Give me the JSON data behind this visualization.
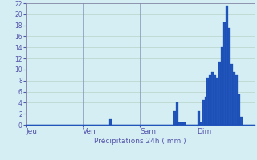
{
  "title": "Précipitations 24h ( mm )",
  "bar_color": "#2255bb",
  "bar_edge_color": "#1144aa",
  "background_color": "#d4eef4",
  "grid_color": "#b0ccbb",
  "tick_label_color": "#5555aa",
  "ylim": [
    0,
    22
  ],
  "yticks": [
    0,
    2,
    4,
    6,
    8,
    10,
    12,
    14,
    16,
    18,
    20,
    22
  ],
  "day_labels": [
    "Jeu",
    "Ven",
    "Sam",
    "Dim"
  ],
  "day_positions": [
    0,
    24,
    48,
    72
  ],
  "num_bars": 96,
  "bar_values": [
    0,
    0,
    0,
    0,
    0,
    0,
    0,
    0,
    0,
    0,
    0,
    0,
    0,
    0,
    0,
    0,
    0,
    0,
    0,
    0,
    0,
    0,
    0,
    0,
    0,
    0,
    0,
    0,
    0,
    0,
    0,
    0,
    0,
    0,
    0,
    1,
    0,
    0,
    0,
    0,
    0,
    0,
    0,
    0,
    0,
    0,
    0,
    0,
    0,
    0,
    0,
    0,
    0,
    0,
    0,
    0,
    0,
    0,
    0,
    0,
    0,
    0,
    2.5,
    4,
    0.5,
    0.5,
    0.5,
    0,
    0,
    0,
    0,
    0,
    2.5,
    0.5,
    4.5,
    5,
    8.5,
    9,
    9.5,
    9,
    8.5,
    11.5,
    14,
    18.5,
    21.5,
    17.5,
    11,
    9.5,
    9,
    5.5,
    1.5,
    0,
    0,
    0,
    0,
    0
  ],
  "spine_color": "#8888aa",
  "figsize": [
    3.2,
    2.0
  ],
  "dpi": 100
}
